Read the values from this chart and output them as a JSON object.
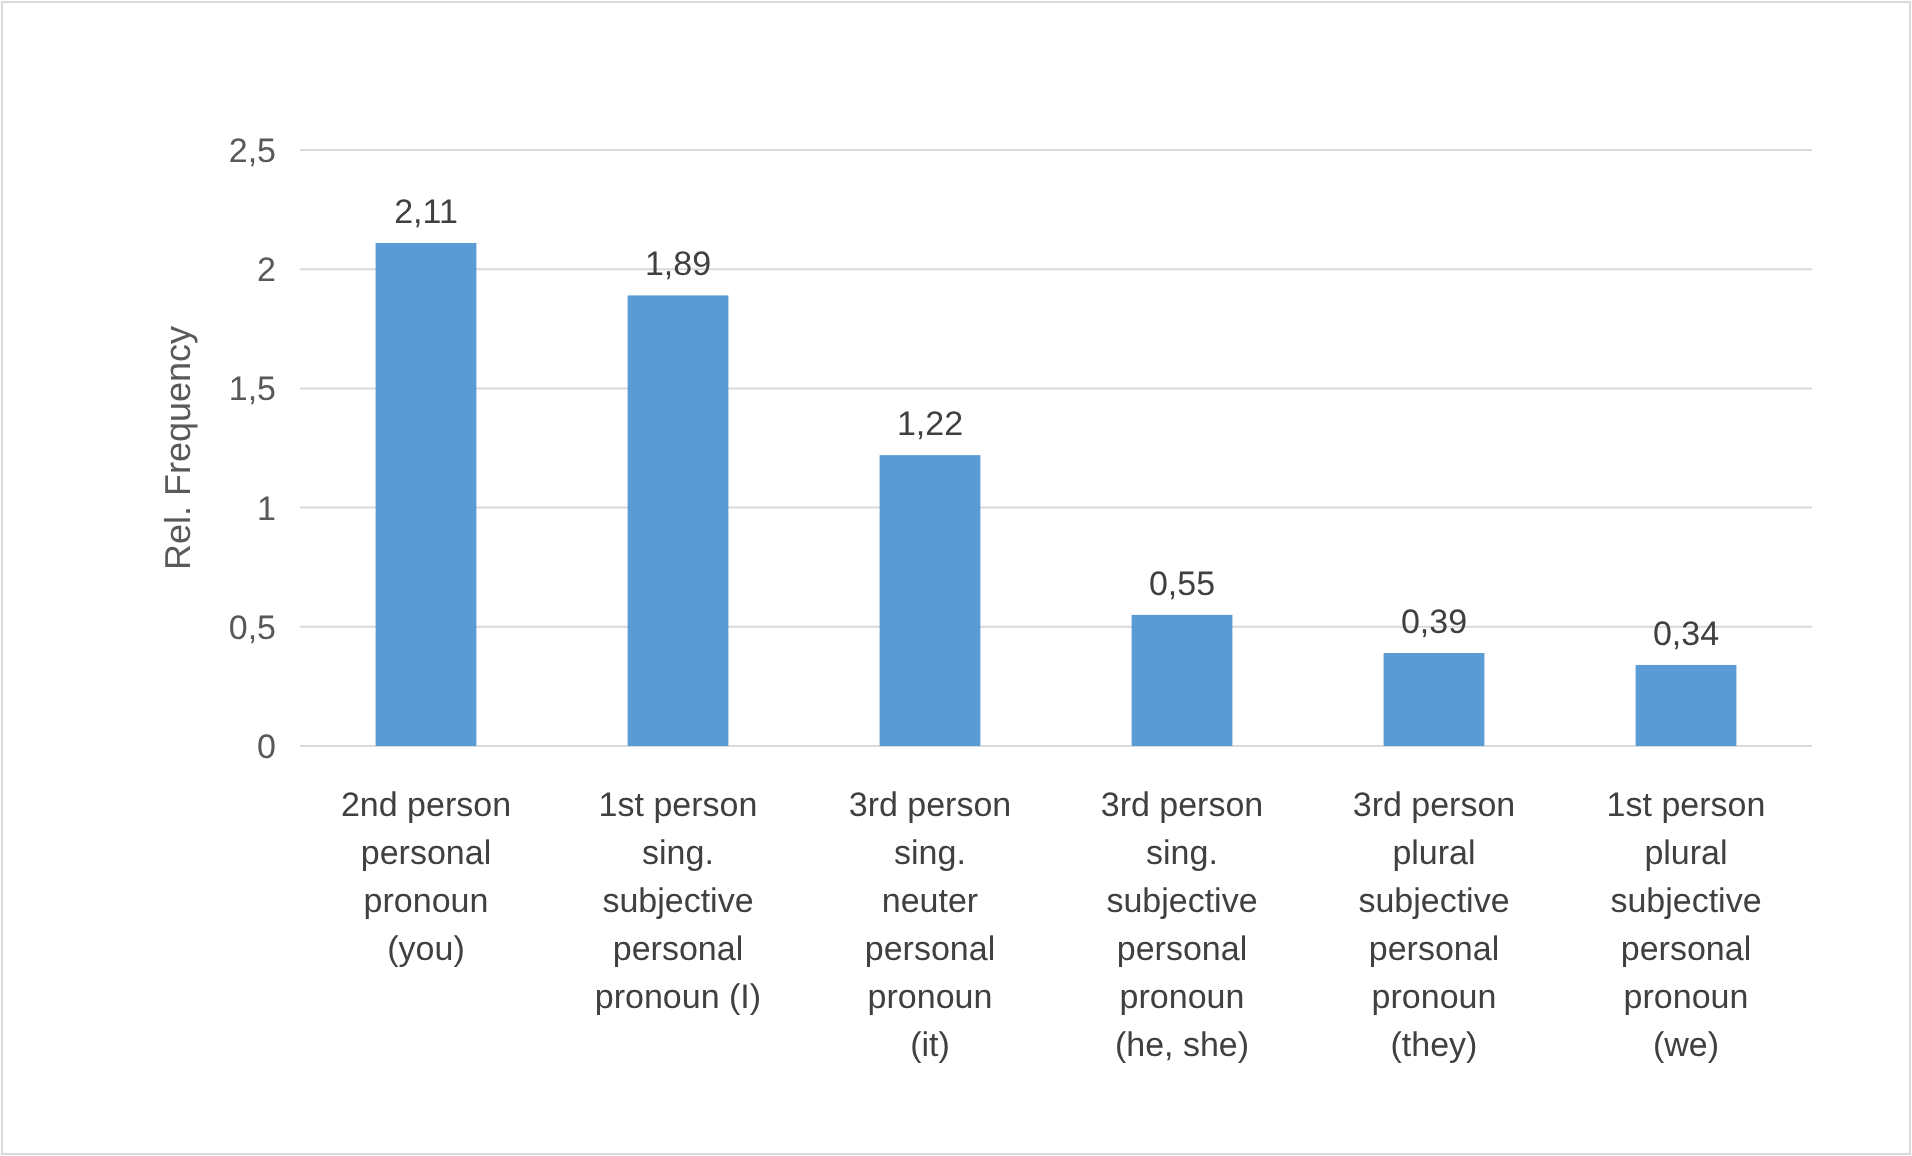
{
  "chart_data": {
    "type": "bar",
    "ylabel": "Rel. Frequency",
    "categories": [
      "2nd person\npersonal\npronoun\n(you)",
      "1st person\nsing.\nsubjective\npersonal\npronoun (I)",
      "3rd person\nsing.\nneuter\npersonal\npronoun\n(it)",
      "3rd person\nsing.\nsubjective\npersonal\npronoun\n(he, she)",
      "3rd person\nplural\nsubjective\npersonal\npronoun\n(they)",
      "1st person\nplural\nsubjective\npersonal\npronoun\n(we)"
    ],
    "values": [
      2.11,
      1.89,
      1.22,
      0.55,
      0.39,
      0.34
    ],
    "value_labels": [
      "2,11",
      "1,89",
      "1,22",
      "0,55",
      "0,39",
      "0,34"
    ],
    "color": "#5b9bd5",
    "ylim": [
      0,
      2.5
    ],
    "yticks": [
      0,
      {
        "value": 0.5,
        "label": "0,5"
      },
      1,
      {
        "value": 1.5,
        "label": "1,5"
      },
      2,
      {
        "value": 2.5,
        "label": "2,5"
      }
    ],
    "grid": "y"
  }
}
